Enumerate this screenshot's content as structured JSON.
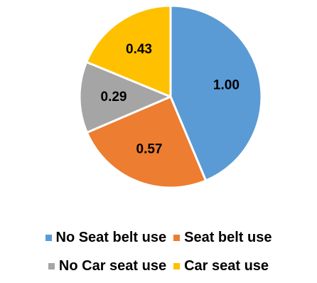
{
  "chart_data": {
    "type": "pie",
    "title": "",
    "series": [
      {
        "name": "No Seat belt use",
        "value": 1.0,
        "label": "1.00",
        "color": "#5b9bd5"
      },
      {
        "name": "Seat belt use",
        "value": 0.57,
        "label": "0.57",
        "color": "#ed7d31"
      },
      {
        "name": "No Car seat use",
        "value": 0.29,
        "label": "0.29",
        "color": "#a5a5a5"
      },
      {
        "name": "Car seat use",
        "value": 0.43,
        "label": "0.43",
        "color": "#ffc000"
      }
    ],
    "legend_position": "bottom",
    "slice_border_color": "#ffffff"
  }
}
